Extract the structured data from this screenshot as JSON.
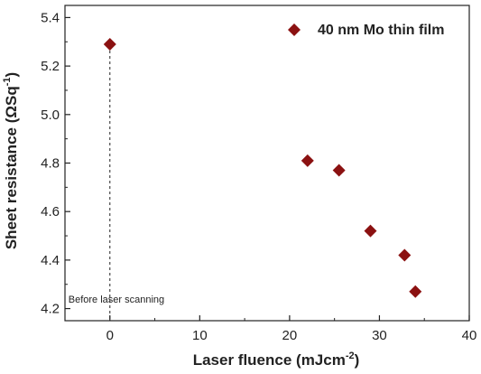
{
  "chart_data": {
    "type": "scatter",
    "xlabel": "Laser fluence (mJcm",
    "xlabel_sup": "-2",
    "xlabel_end": ")",
    "ylabel": "Sheet resistance (ΩSq",
    "ylabel_sup": "-1",
    "ylabel_end": ")",
    "xlim": [
      -5,
      40
    ],
    "ylim": [
      4.15,
      5.45
    ],
    "xticks": [
      0,
      10,
      20,
      30,
      40
    ],
    "xtick_labels": [
      "0",
      "10",
      "20",
      "30",
      "40"
    ],
    "yticks": [
      4.2,
      4.4,
      4.6,
      4.8,
      5.0,
      5.2,
      5.4
    ],
    "ytick_labels": [
      "4.2",
      "4.4",
      "4.6",
      "4.8",
      "5.0",
      "5.2",
      "5.4"
    ],
    "grid": false,
    "legend_position": "top-right",
    "series": [
      {
        "name": "40 nm Mo thin film",
        "color": "#8B1111",
        "marker": "diamond",
        "points": [
          {
            "x": 0,
            "y": 5.29
          },
          {
            "x": 22,
            "y": 4.81
          },
          {
            "x": 25.5,
            "y": 4.77
          },
          {
            "x": 29,
            "y": 4.52
          },
          {
            "x": 32.8,
            "y": 4.42
          },
          {
            "x": 34,
            "y": 4.27
          }
        ]
      }
    ],
    "annotations": [
      {
        "text": "Before laser scanning",
        "x": 0,
        "y": 4.22,
        "line": "dashed-vertical"
      }
    ]
  }
}
